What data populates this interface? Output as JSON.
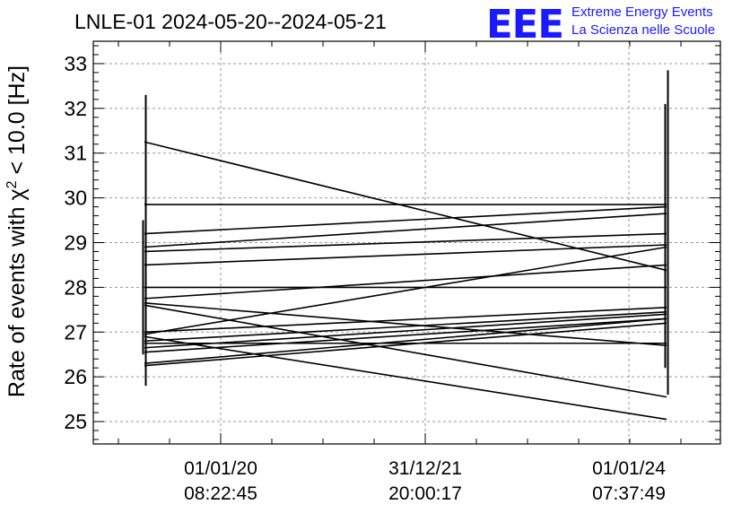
{
  "logo": {
    "letters": "EEE",
    "line1": "Extreme Energy Events",
    "line2": "La Scienza nelle Scuole",
    "color": "#1a1aff"
  },
  "chart_data": {
    "type": "line",
    "title": "LNLE-01 2024-05-20--2024-05-21",
    "ylabel": "Rate of events with χ² < 10.0 [Hz]",
    "ylabel_parts": {
      "before": "Rate of events with ",
      "chi": "χ",
      "sup": "2",
      "after": " < 10.0 [Hz]"
    },
    "xlabel": "",
    "ylim": [
      24.5,
      33.5
    ],
    "yticks": [
      25,
      26,
      27,
      28,
      29,
      30,
      31,
      32,
      33
    ],
    "xticks": [
      {
        "date": "01/01/20",
        "time": "08:22:45"
      },
      {
        "date": "31/12/21",
        "time": "20:00:17"
      },
      {
        "date": "01/01/24",
        "time": "07:37:49"
      }
    ],
    "grid": true,
    "line_color": "#000000",
    "segments": [
      {
        "x": [
          "2024-05-20",
          "2024-05-21"
        ],
        "y": [
          31.25,
          28.38
        ]
      },
      {
        "x": [
          "2024-05-20",
          "2024-05-21"
        ],
        "y": [
          29.85,
          29.85
        ]
      },
      {
        "x": [
          "2024-05-20",
          "2024-05-21"
        ],
        "y": [
          29.2,
          29.8
        ]
      },
      {
        "x": [
          "2024-05-20",
          "2024-05-21"
        ],
        "y": [
          28.9,
          29.65
        ]
      },
      {
        "x": [
          "2024-05-20",
          "2024-05-21"
        ],
        "y": [
          28.8,
          29.2
        ]
      },
      {
        "x": [
          "2024-05-20",
          "2024-05-21"
        ],
        "y": [
          28.5,
          28.95
        ]
      },
      {
        "x": [
          "2024-05-20",
          "2024-05-21"
        ],
        "y": [
          28.0,
          28.0
        ]
      },
      {
        "x": [
          "2024-05-20",
          "2024-05-21"
        ],
        "y": [
          27.75,
          28.5
        ]
      },
      {
        "x": [
          "2024-05-20",
          "2024-05-21"
        ],
        "y": [
          27.65,
          26.7
        ]
      },
      {
        "x": [
          "2024-05-20",
          "2024-05-21"
        ],
        "y": [
          27.6,
          25.55
        ]
      },
      {
        "x": [
          "2024-05-20",
          "2024-05-21"
        ],
        "y": [
          27.0,
          27.55
        ]
      },
      {
        "x": [
          "2024-05-20",
          "2024-05-21"
        ],
        "y": [
          26.95,
          28.9
        ]
      },
      {
        "x": [
          "2024-05-20",
          "2024-05-21"
        ],
        "y": [
          26.9,
          25.05
        ]
      },
      {
        "x": [
          "2024-05-20",
          "2024-05-21"
        ],
        "y": [
          26.8,
          27.45
        ]
      },
      {
        "x": [
          "2024-05-20",
          "2024-05-21"
        ],
        "y": [
          26.75,
          26.75
        ]
      },
      {
        "x": [
          "2024-05-20",
          "2024-05-21"
        ],
        "y": [
          26.65,
          27.4
        ]
      },
      {
        "x": [
          "2024-05-20",
          "2024-05-21"
        ],
        "y": [
          26.55,
          27.3
        ]
      },
      {
        "x": [
          "2024-05-20",
          "2024-05-21"
        ],
        "y": [
          26.3,
          27.3
        ]
      },
      {
        "x": [
          "2024-05-20",
          "2024-05-21"
        ],
        "y": [
          26.25,
          27.2
        ]
      }
    ],
    "error_bars": [
      {
        "x": "2024-05-20",
        "low": 25.8,
        "high": 32.3
      },
      {
        "x": "2024-05-20",
        "low": 26.5,
        "high": 29.5
      },
      {
        "x": "2024-05-21",
        "low": 25.6,
        "high": 32.85
      },
      {
        "x": "2024-05-21",
        "low": 26.2,
        "high": 32.1
      }
    ]
  }
}
